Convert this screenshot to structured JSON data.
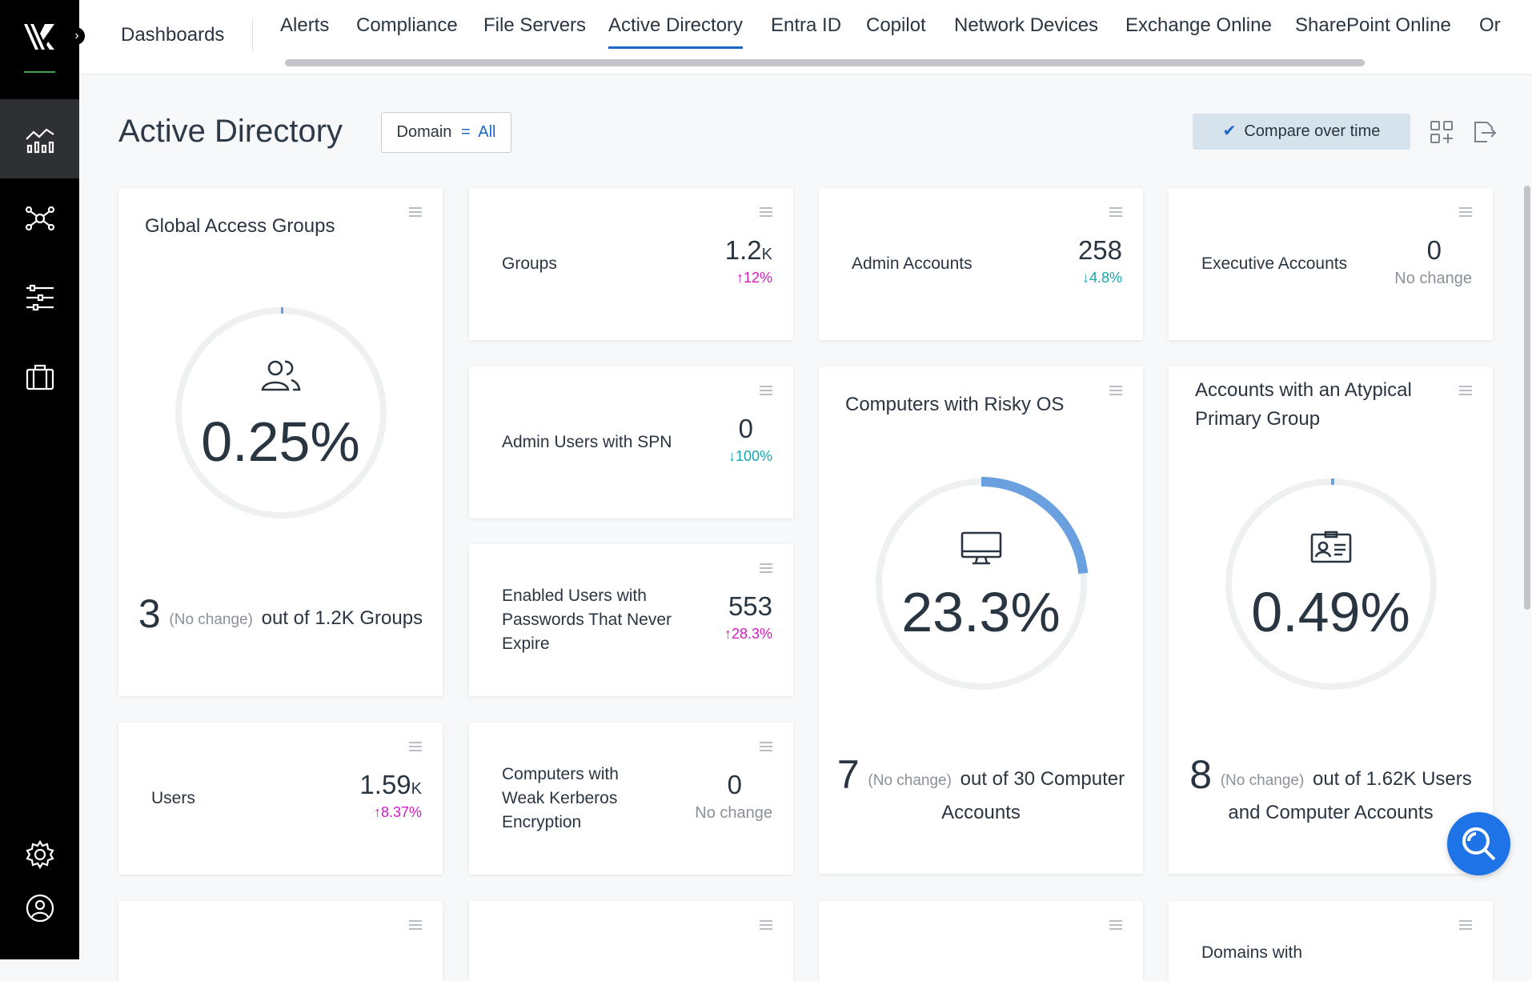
{
  "topbar": {
    "dashboards_label": "Dashboards",
    "tabs": [
      {
        "label": "Alerts"
      },
      {
        "label": "Compliance"
      },
      {
        "label": "File Servers"
      },
      {
        "label": "Active Directory"
      },
      {
        "label": "Entra ID"
      },
      {
        "label": "Copilot"
      },
      {
        "label": "Network Devices"
      },
      {
        "label": "Exchange Online"
      },
      {
        "label": "SharePoint Online"
      },
      {
        "label": "Or"
      }
    ],
    "active_tab": "Active Directory"
  },
  "header": {
    "title": "Active Directory",
    "domain_filter": {
      "label": "Domain",
      "eq": "=",
      "value": "All"
    },
    "compare_label": "Compare over time"
  },
  "colors": {
    "accent": "#1e66c9",
    "up": "#d21bc0",
    "down": "#16a6ad",
    "ring": "#6a9fe0"
  },
  "cards": {
    "global_access": {
      "title": "Global Access Groups",
      "percent": "0.25%",
      "fraction": 0.0025,
      "count": "3",
      "change": "(No change)",
      "out_of": "out of 1.2K Groups"
    },
    "groups": {
      "label": "Groups",
      "value": "1.2",
      "unit": "K",
      "delta": "12%",
      "direction": "up"
    },
    "admin_accounts": {
      "label": "Admin Accounts",
      "value": "258",
      "delta": "4.8%",
      "direction": "down"
    },
    "executive_accounts": {
      "label": "Executive Accounts",
      "value": "0",
      "delta": "No change"
    },
    "admin_spn": {
      "label": "Admin Users with SPN",
      "value": "0",
      "delta": "100%",
      "direction": "down"
    },
    "pw_never_expire": {
      "label_lines": [
        "Enabled Users with",
        "Passwords That Never",
        "Expire"
      ],
      "value": "553",
      "delta": "28.3%",
      "direction": "up"
    },
    "risky_os": {
      "title": "Computers with Risky OS",
      "percent": "23.3%",
      "fraction": 0.233,
      "count": "7",
      "change": "(No change)",
      "out_of_1": "out of 30 Computer",
      "out_of_2": "Accounts"
    },
    "atypical_group": {
      "title_lines": [
        "Accounts with an Atypical",
        "Primary Group"
      ],
      "percent": "0.49%",
      "fraction": 0.0049,
      "count": "8",
      "change": "(No change)",
      "out_of_1": "out of 1.62K Users",
      "out_of_2": "and Computer Accounts"
    },
    "users": {
      "label": "Users",
      "value": "1.59",
      "unit": "K",
      "delta": "8.37%",
      "direction": "up"
    },
    "weak_kerberos": {
      "label_lines": [
        "Computers with",
        "Weak Kerberos",
        "Encryption"
      ],
      "value": "0",
      "delta": "No change"
    },
    "bottom_partial": {
      "domains_label": "Domains with"
    }
  }
}
